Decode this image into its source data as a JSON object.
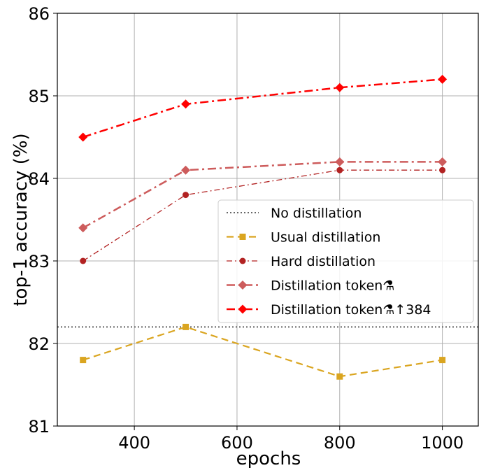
{
  "chart_data": {
    "type": "line",
    "xlabel": "epochs",
    "ylabel": "top-1 accuracy (%)",
    "xlim": [
      250,
      1070
    ],
    "ylim": [
      81,
      86
    ],
    "xticks": [
      400,
      600,
      800,
      1000
    ],
    "yticks": [
      81,
      82,
      83,
      84,
      85,
      86
    ],
    "grid": true,
    "legend_position": "center-right",
    "x": [
      300,
      500,
      800,
      1000
    ],
    "baseline": {
      "name": "No distillation",
      "value": 82.2,
      "color": "#666666"
    },
    "series": [
      {
        "name": "Usual distillation",
        "values": [
          81.8,
          82.2,
          81.6,
          81.8
        ],
        "color": "#DAA520",
        "marker": "square",
        "dash": "10,6",
        "width": 2.2
      },
      {
        "name": "Hard distillation",
        "values": [
          83.0,
          83.8,
          84.1,
          84.1
        ],
        "color": "#B22222",
        "marker": "circle",
        "dash": "8,4,2,4",
        "width": 1.3
      },
      {
        "name": "Distillation token⚗",
        "values": [
          83.4,
          84.1,
          84.2,
          84.2
        ],
        "color": "#CD5C5C",
        "marker": "diamond",
        "dash": "12,5,3,5",
        "width": 2.5
      },
      {
        "name": "Distillation token⚗↑384",
        "values": [
          84.5,
          84.9,
          85.1,
          85.2
        ],
        "color": "#FF0000",
        "marker": "diamond",
        "dash": "12,5,3,5",
        "width": 2.5
      }
    ]
  }
}
